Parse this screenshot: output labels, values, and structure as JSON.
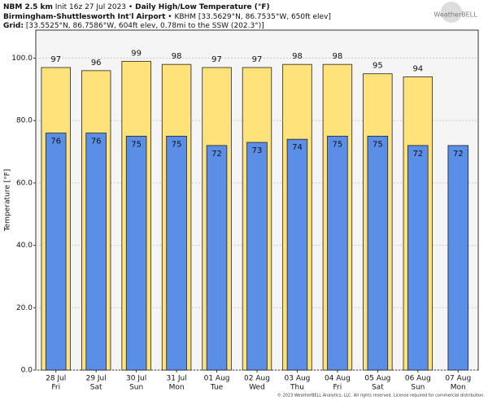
{
  "header": {
    "model": "NBM 2.5 km",
    "init": "Init 16z 27 Jul 2023",
    "sep": "•",
    "product": "Daily High/Low Temperature (°F)",
    "station": "Birmingham-Shuttlesworth Int'l Airport",
    "station_info": "• KBHM [33.5629°N, 86.7535°W, 650ft elev]",
    "grid_label": "Grid:",
    "grid_info": "[33.5525°N, 86.7586°W, 604ft elev, 0.78mi to the SSW (202.3°)]",
    "logo": "WeatherBELL",
    "footer": "© 2023 WeatherBELL Analytics, LLC. All rights reserved. License required for commercial distribution."
  },
  "chart_data": {
    "type": "bar",
    "y_label": "Temperature [°F]",
    "categories": [
      "28 Jul",
      "29 Jul",
      "30 Jul",
      "31 Jul",
      "01 Aug",
      "02 Aug",
      "03 Aug",
      "04 Aug",
      "05 Aug",
      "06 Aug",
      "07 Aug"
    ],
    "category_sublabels": [
      "Fri",
      "Sat",
      "Sun",
      "Mon",
      "Tue",
      "Wed",
      "Thu",
      "Fri",
      "Sat",
      "Sun",
      "Mon"
    ],
    "series": [
      {
        "color": "#ffe27a",
        "values": [
          97,
          96,
          99,
          98,
          97,
          97,
          98,
          98,
          95,
          94,
          null
        ]
      },
      {
        "color": "#5b8ee6",
        "values": [
          76,
          76,
          75,
          75,
          72,
          73,
          74,
          75,
          75,
          72,
          72
        ]
      }
    ],
    "ylim": [
      0,
      109
    ],
    "yticks": [
      {
        "value": 0,
        "label": "0.0"
      },
      {
        "value": 20,
        "label": "20.0"
      },
      {
        "value": 40,
        "label": "40.0"
      },
      {
        "value": 60,
        "label": "60.0"
      },
      {
        "value": 80,
        "label": "80.0"
      },
      {
        "value": 100,
        "label": "100.0"
      }
    ],
    "grid": true
  }
}
